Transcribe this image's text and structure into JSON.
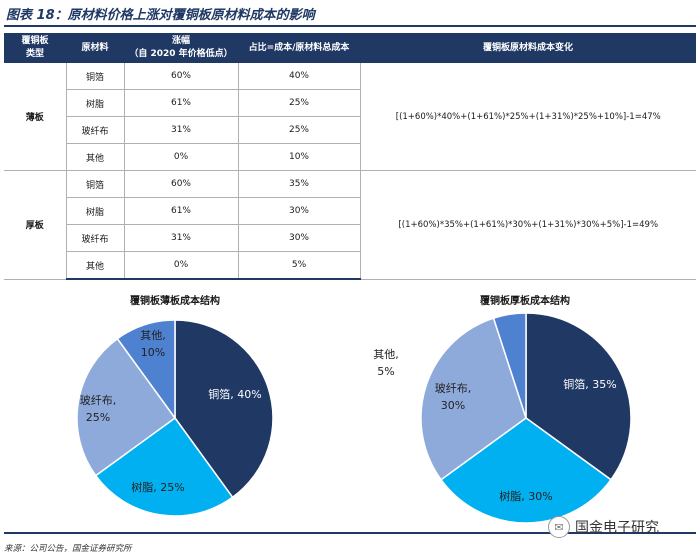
{
  "figure_title": "图表 18：原材料价格上涨对覆铜板原材料成本的影响",
  "table": {
    "headers": {
      "type_line1": "覆铜板",
      "type_line2": "类型",
      "material": "原材料",
      "increase_line1": "涨幅",
      "increase_line2": "（自 2020 年价格低点）",
      "share": "占比=成本/原材料总成本",
      "change": "覆铜板原材料成本变化"
    },
    "groups": [
      {
        "name": "薄板",
        "formula": "[(1+60%)*40%+(1+61%)*25%+(1+31%)*25%+10%]-1=47%",
        "rows": [
          {
            "material": "铜箔",
            "increase": "60%",
            "share": "40%"
          },
          {
            "material": "树脂",
            "increase": "61%",
            "share": "25%"
          },
          {
            "material": "玻纤布",
            "increase": "31%",
            "share": "25%"
          },
          {
            "material": "其他",
            "increase": "0%",
            "share": "10%"
          }
        ]
      },
      {
        "name": "厚板",
        "formula": "[(1+60%)*35%+(1+61%)*30%+(1+31%)*30%+5%]-1=49%",
        "rows": [
          {
            "material": "铜箔",
            "increase": "60%",
            "share": "35%"
          },
          {
            "material": "树脂",
            "increase": "61%",
            "share": "30%"
          },
          {
            "material": "玻纤布",
            "increase": "31%",
            "share": "30%"
          },
          {
            "material": "其他",
            "increase": "0%",
            "share": "5%"
          }
        ]
      }
    ]
  },
  "chart_data": [
    {
      "type": "pie",
      "title": "覆铜板薄板成本结构",
      "slices": [
        {
          "label": "铜箔",
          "value": 40,
          "color": "#1f3864"
        },
        {
          "label": "树脂",
          "value": 25,
          "color": "#00b0f0"
        },
        {
          "label": "玻纤布",
          "value": 25,
          "color": "#8eaadb"
        },
        {
          "label": "其他",
          "value": 10,
          "color": "#4f81d1"
        }
      ]
    },
    {
      "type": "pie",
      "title": "覆铜板厚板成本结构",
      "slices": [
        {
          "label": "铜箔",
          "value": 35,
          "color": "#1f3864"
        },
        {
          "label": "树脂",
          "value": 30,
          "color": "#00b0f0"
        },
        {
          "label": "玻纤布",
          "value": 30,
          "color": "#8eaadb"
        },
        {
          "label": "其他",
          "value": 5,
          "color": "#4f81d1"
        }
      ]
    }
  ],
  "source": "来源：公司公告，国金证券研究所",
  "watermark": "国金电子研究"
}
